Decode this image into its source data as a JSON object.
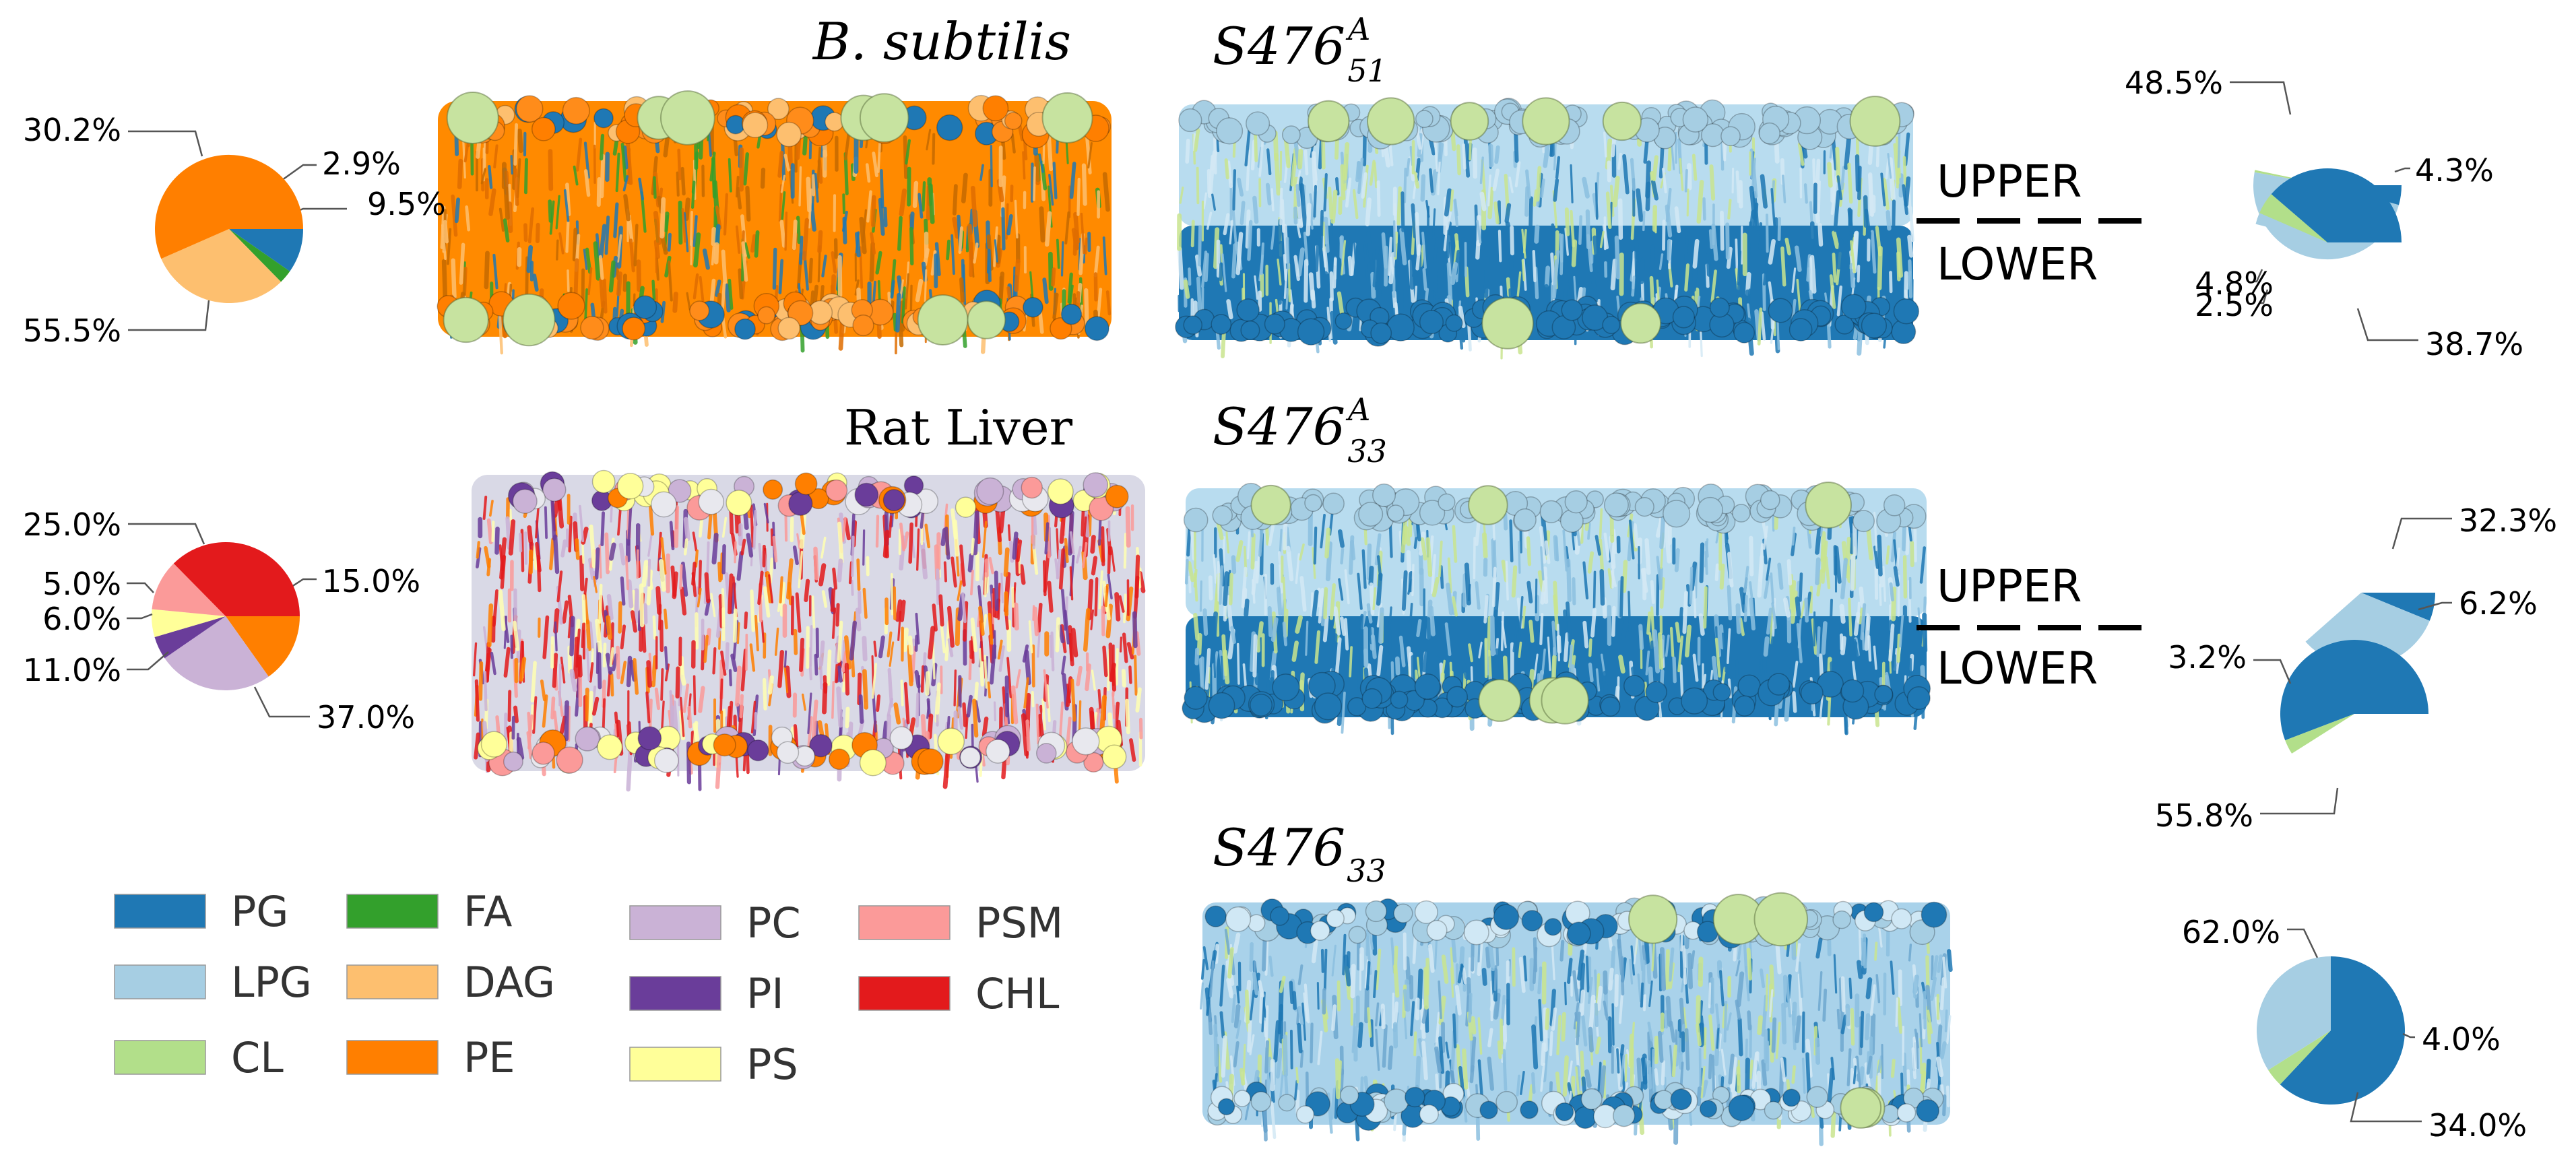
{
  "colors": {
    "PG": "#1f78b4",
    "LPG": "#a6cee3",
    "CL": "#b2df8a",
    "FA": "#33a02c",
    "DAG": "#fdbf6f",
    "PE": "#ff7f00",
    "PC": "#cab2d6",
    "PI": "#6a3d9a",
    "PS": "#ffff99",
    "PSM": "#fb9a99",
    "CHL": "#e31a1c"
  },
  "titles": {
    "bsub": "B. subtilis",
    "rat": "Rat Liver",
    "s51_base": "S476",
    "s51_sup": "A",
    "s51_sub": "51",
    "s33a_base": "S476",
    "s33a_sup": "A",
    "s33a_sub": "33",
    "s33_base": "S476",
    "s33_sub": "33"
  },
  "leaflets": {
    "upper": "UPPER",
    "lower": "LOWER"
  },
  "legend": [
    {
      "label": "PG",
      "key": "PG"
    },
    {
      "label": "LPG",
      "key": "LPG"
    },
    {
      "label": "CL",
      "key": "CL"
    },
    {
      "label": "FA",
      "key": "FA"
    },
    {
      "label": "DAG",
      "key": "DAG"
    },
    {
      "label": "PE",
      "key": "PE"
    },
    {
      "label": "PC",
      "key": "PC"
    },
    {
      "label": "PI",
      "key": "PI"
    },
    {
      "label": "PS",
      "key": "PS"
    },
    {
      "label": "PSM",
      "key": "PSM"
    },
    {
      "label": "CHL",
      "key": "CHL"
    }
  ],
  "chart_data": [
    {
      "type": "pie",
      "id": "bsubtilis",
      "slices": [
        {
          "name": "PG",
          "value": 9.5,
          "label": "9.5%"
        },
        {
          "name": "FA",
          "value": 2.9,
          "label": "2.9%"
        },
        {
          "name": "DAG",
          "value": 30.2,
          "label": "30.2%"
        },
        {
          "name": "PE",
          "value": 55.5,
          "label": "55.5%"
        }
      ]
    },
    {
      "type": "pie",
      "id": "ratliver",
      "slices": [
        {
          "name": "PE",
          "value": 15.0,
          "label": "15.0%"
        },
        {
          "name": "PC",
          "value": 25.0,
          "label": "25.0%"
        },
        {
          "name": "PI",
          "value": 5.0,
          "label": "5.0%"
        },
        {
          "name": "PS",
          "value": 6.0,
          "label": "6.0%"
        },
        {
          "name": "PSM",
          "value": 11.0,
          "label": "11.0%"
        },
        {
          "name": "CHL",
          "value": 37.0,
          "label": "37.0%"
        }
      ]
    },
    {
      "type": "pie",
      "id": "S476A51-upper",
      "slices": [
        {
          "name": "PG",
          "value": 4.3,
          "label": "4.3%"
        },
        {
          "name": "LPG",
          "value": 48.5,
          "label": "48.5%"
        },
        {
          "name": "CL",
          "value": 0.5,
          "label": ""
        }
      ]
    },
    {
      "type": "pie",
      "id": "S476A51-lower",
      "slices": [
        {
          "name": "PG",
          "value": 38.7,
          "label": "38.7%"
        },
        {
          "name": "CL",
          "value": 4.8,
          "label": "4.8%"
        },
        {
          "name": "LPG",
          "value": 2.5,
          "label": "2.5%"
        }
      ]
    },
    {
      "type": "pie",
      "id": "S476A33-upper",
      "slices": [
        {
          "name": "PG",
          "value": 6.2,
          "label": "6.2%"
        },
        {
          "name": "LPG",
          "value": 32.3,
          "label": "32.3%"
        }
      ]
    },
    {
      "type": "pie",
      "id": "S476A33-lower",
      "slices": [
        {
          "name": "PG",
          "value": 55.8,
          "label": "55.8%"
        },
        {
          "name": "CL",
          "value": 3.2,
          "label": "3.2%"
        }
      ]
    },
    {
      "type": "pie",
      "id": "S47633",
      "slices": [
        {
          "name": "PG",
          "value": 62.0,
          "label": "62.0%"
        },
        {
          "name": "CL",
          "value": 4.0,
          "label": "4.0%"
        },
        {
          "name": "LPG",
          "value": 34.0,
          "label": "34.0%"
        }
      ]
    }
  ]
}
